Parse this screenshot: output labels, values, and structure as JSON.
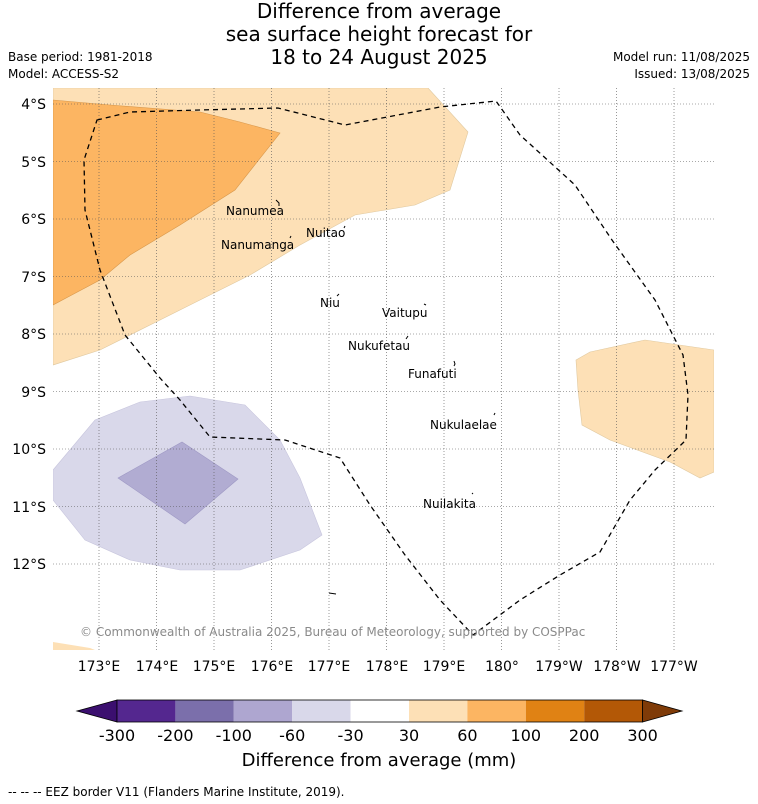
{
  "title": {
    "line1": "Difference from average",
    "line2": "sea surface height forecast for",
    "line3": "18 to 24 August 2025"
  },
  "meta_left": {
    "base_period": "Base period: 1981-2018",
    "model": "Model: ACCESS-S2"
  },
  "meta_right": {
    "model_run": "Model run: 11/08/2025",
    "issued": "Issued: 13/08/2025"
  },
  "map": {
    "lat_labels": [
      "4°S",
      "5°S",
      "6°S",
      "7°S",
      "8°S",
      "9°S",
      "10°S",
      "11°S",
      "12°S"
    ],
    "lon_labels": [
      "173°E",
      "174°E",
      "175°E",
      "176°E",
      "177°E",
      "178°E",
      "179°E",
      "180°",
      "179°W",
      "178°W",
      "177°W"
    ],
    "islands": [
      "Nanumea",
      "Nuitao",
      "Nanumanga",
      "Niu",
      "Vaitupu",
      "Nukufetau",
      "Funafuti",
      "Nukulaelae",
      "Nuilakita"
    ],
    "copyright": "© Commonwealth of Australia 2025, Bureau of Meteorology, supported by COSPPac",
    "eez_border": "dashed"
  },
  "colorbar": {
    "ticks": [
      "-300",
      "-200",
      "-100",
      "-60",
      "-30",
      "30",
      "60",
      "100",
      "200",
      "300"
    ],
    "colors": [
      "#3b0f6f",
      "#54278f",
      "#7b6fab",
      "#aea6d0",
      "#d9d8ea",
      "#ffffff",
      "#fde0b6",
      "#fcb562",
      "#e08214",
      "#b35806",
      "#7f3b08"
    ],
    "label": "Difference from average (mm)"
  },
  "footer": "--  --  -- EEZ border V11 (Flanders Marine Institute, 2019)."
}
